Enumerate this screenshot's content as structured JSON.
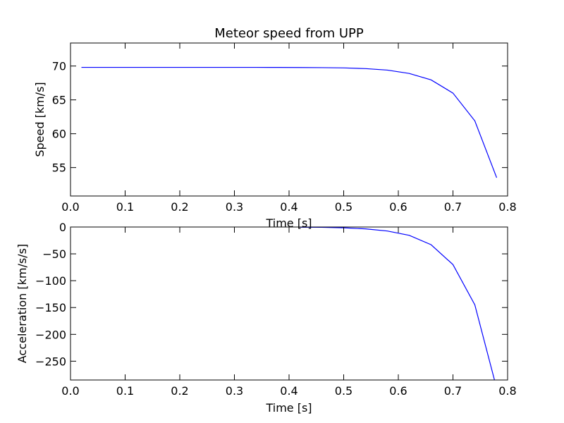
{
  "chart_data": [
    {
      "type": "line",
      "title": "Meteor speed from  UPP",
      "xlabel": "Time [s]",
      "ylabel": "Speed [km/s]",
      "xlim": [
        0.0,
        0.8
      ],
      "ylim": [
        50.8,
        73.4
      ],
      "xticks": [
        0.0,
        0.1,
        0.2,
        0.3,
        0.4,
        0.5,
        0.6,
        0.7,
        0.8
      ],
      "xtick_labels": [
        "0.0",
        "0.1",
        "0.2",
        "0.3",
        "0.4",
        "0.5",
        "0.6",
        "0.7",
        "0.8"
      ],
      "yticks": [
        55,
        60,
        65,
        70
      ],
      "ytick_labels": [
        "55",
        "60",
        "65",
        "70"
      ],
      "grid": false,
      "series": [
        {
          "color": "#0000ff",
          "x": [
            0.02,
            0.06,
            0.1,
            0.14,
            0.18,
            0.22,
            0.26,
            0.3,
            0.34,
            0.38,
            0.42,
            0.46,
            0.5,
            0.54,
            0.58,
            0.62,
            0.66,
            0.7,
            0.74,
            0.78
          ],
          "y": [
            69.8,
            69.8,
            69.8,
            69.8,
            69.8,
            69.8,
            69.8,
            69.8,
            69.8,
            69.79,
            69.78,
            69.76,
            69.72,
            69.62,
            69.4,
            68.9,
            67.95,
            66.0,
            61.9,
            53.5
          ]
        }
      ]
    },
    {
      "type": "line",
      "title": "",
      "xlabel": "Time [s]",
      "ylabel": "Acceleration [km/s/s]",
      "xlim": [
        0.0,
        0.8
      ],
      "ylim": [
        -285,
        0
      ],
      "xticks": [
        0.0,
        0.1,
        0.2,
        0.3,
        0.4,
        0.5,
        0.6,
        0.7,
        0.8
      ],
      "xtick_labels": [
        "0.0",
        "0.1",
        "0.2",
        "0.3",
        "0.4",
        "0.5",
        "0.6",
        "0.7",
        "0.8"
      ],
      "yticks": [
        0,
        -50,
        -100,
        -150,
        -200,
        -250
      ],
      "ytick_labels": [
        "0",
        "−50",
        "−100",
        "−150",
        "−200",
        "−250"
      ],
      "grid": false,
      "series": [
        {
          "color": "#0000ff",
          "x": [
            0.42,
            0.46,
            0.5,
            0.54,
            0.58,
            0.62,
            0.66,
            0.7,
            0.74,
            0.776
          ],
          "y": [
            -0.3,
            -0.6,
            -1.5,
            -3.5,
            -7.5,
            -15.5,
            -33,
            -70,
            -145,
            -285
          ]
        }
      ]
    }
  ]
}
